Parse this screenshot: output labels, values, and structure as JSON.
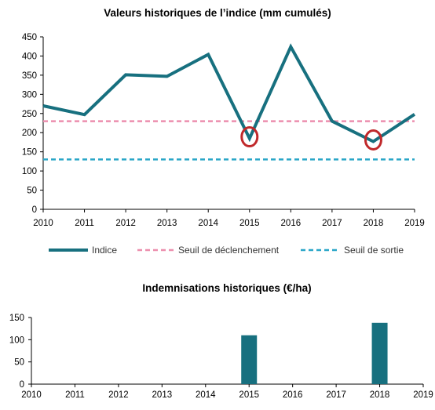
{
  "colors": {
    "indice": "#17707f",
    "seuil_declenchement": "#ec8fae",
    "seuil_sortie": "#2aa6c8",
    "circle": "#c0292b",
    "bar": "#17707f",
    "axis": "#000000"
  },
  "chart_data": [
    {
      "type": "line",
      "title": "Valeurs historiques de l’indice (mm cumulés)",
      "xlabel": "",
      "ylabel": "",
      "x": [
        "2010",
        "2011",
        "2012",
        "2013",
        "2014",
        "2015",
        "2016",
        "2017",
        "2018",
        "2019"
      ],
      "ylim": [
        0,
        450
      ],
      "yticks": [
        0,
        50,
        100,
        150,
        200,
        250,
        300,
        350,
        400,
        450
      ],
      "grid": false,
      "legend": "bottom",
      "series": [
        {
          "name": "Indice",
          "style": "solid",
          "values": [
            270,
            247,
            351,
            347,
            404,
            185,
            424,
            230,
            177,
            248
          ]
        },
        {
          "name": "Seuil de déclenchement",
          "style": "dashed",
          "values": [
            230,
            230,
            230,
            230,
            230,
            230,
            230,
            230,
            230,
            230
          ]
        },
        {
          "name": "Seuil de sortie",
          "style": "dashed",
          "values": [
            130,
            130,
            130,
            130,
            130,
            130,
            130,
            130,
            130,
            130
          ]
        }
      ],
      "annotations": [
        {
          "type": "circle",
          "x": "2015",
          "y": 185
        },
        {
          "type": "circle",
          "x": "2018",
          "y": 177
        }
      ]
    },
    {
      "type": "bar",
      "title": "Indemnisations historiques (€/ha)",
      "xlabel": "",
      "ylabel": "",
      "categories": [
        "2010",
        "2011",
        "2012",
        "2013",
        "2014",
        "2015",
        "2016",
        "2017",
        "2018",
        "2019"
      ],
      "values": [
        0,
        0,
        0,
        0,
        0,
        110,
        0,
        0,
        138,
        0
      ],
      "ylim": [
        0,
        150
      ],
      "yticks": [
        0,
        50,
        100,
        150
      ],
      "grid": false
    }
  ]
}
